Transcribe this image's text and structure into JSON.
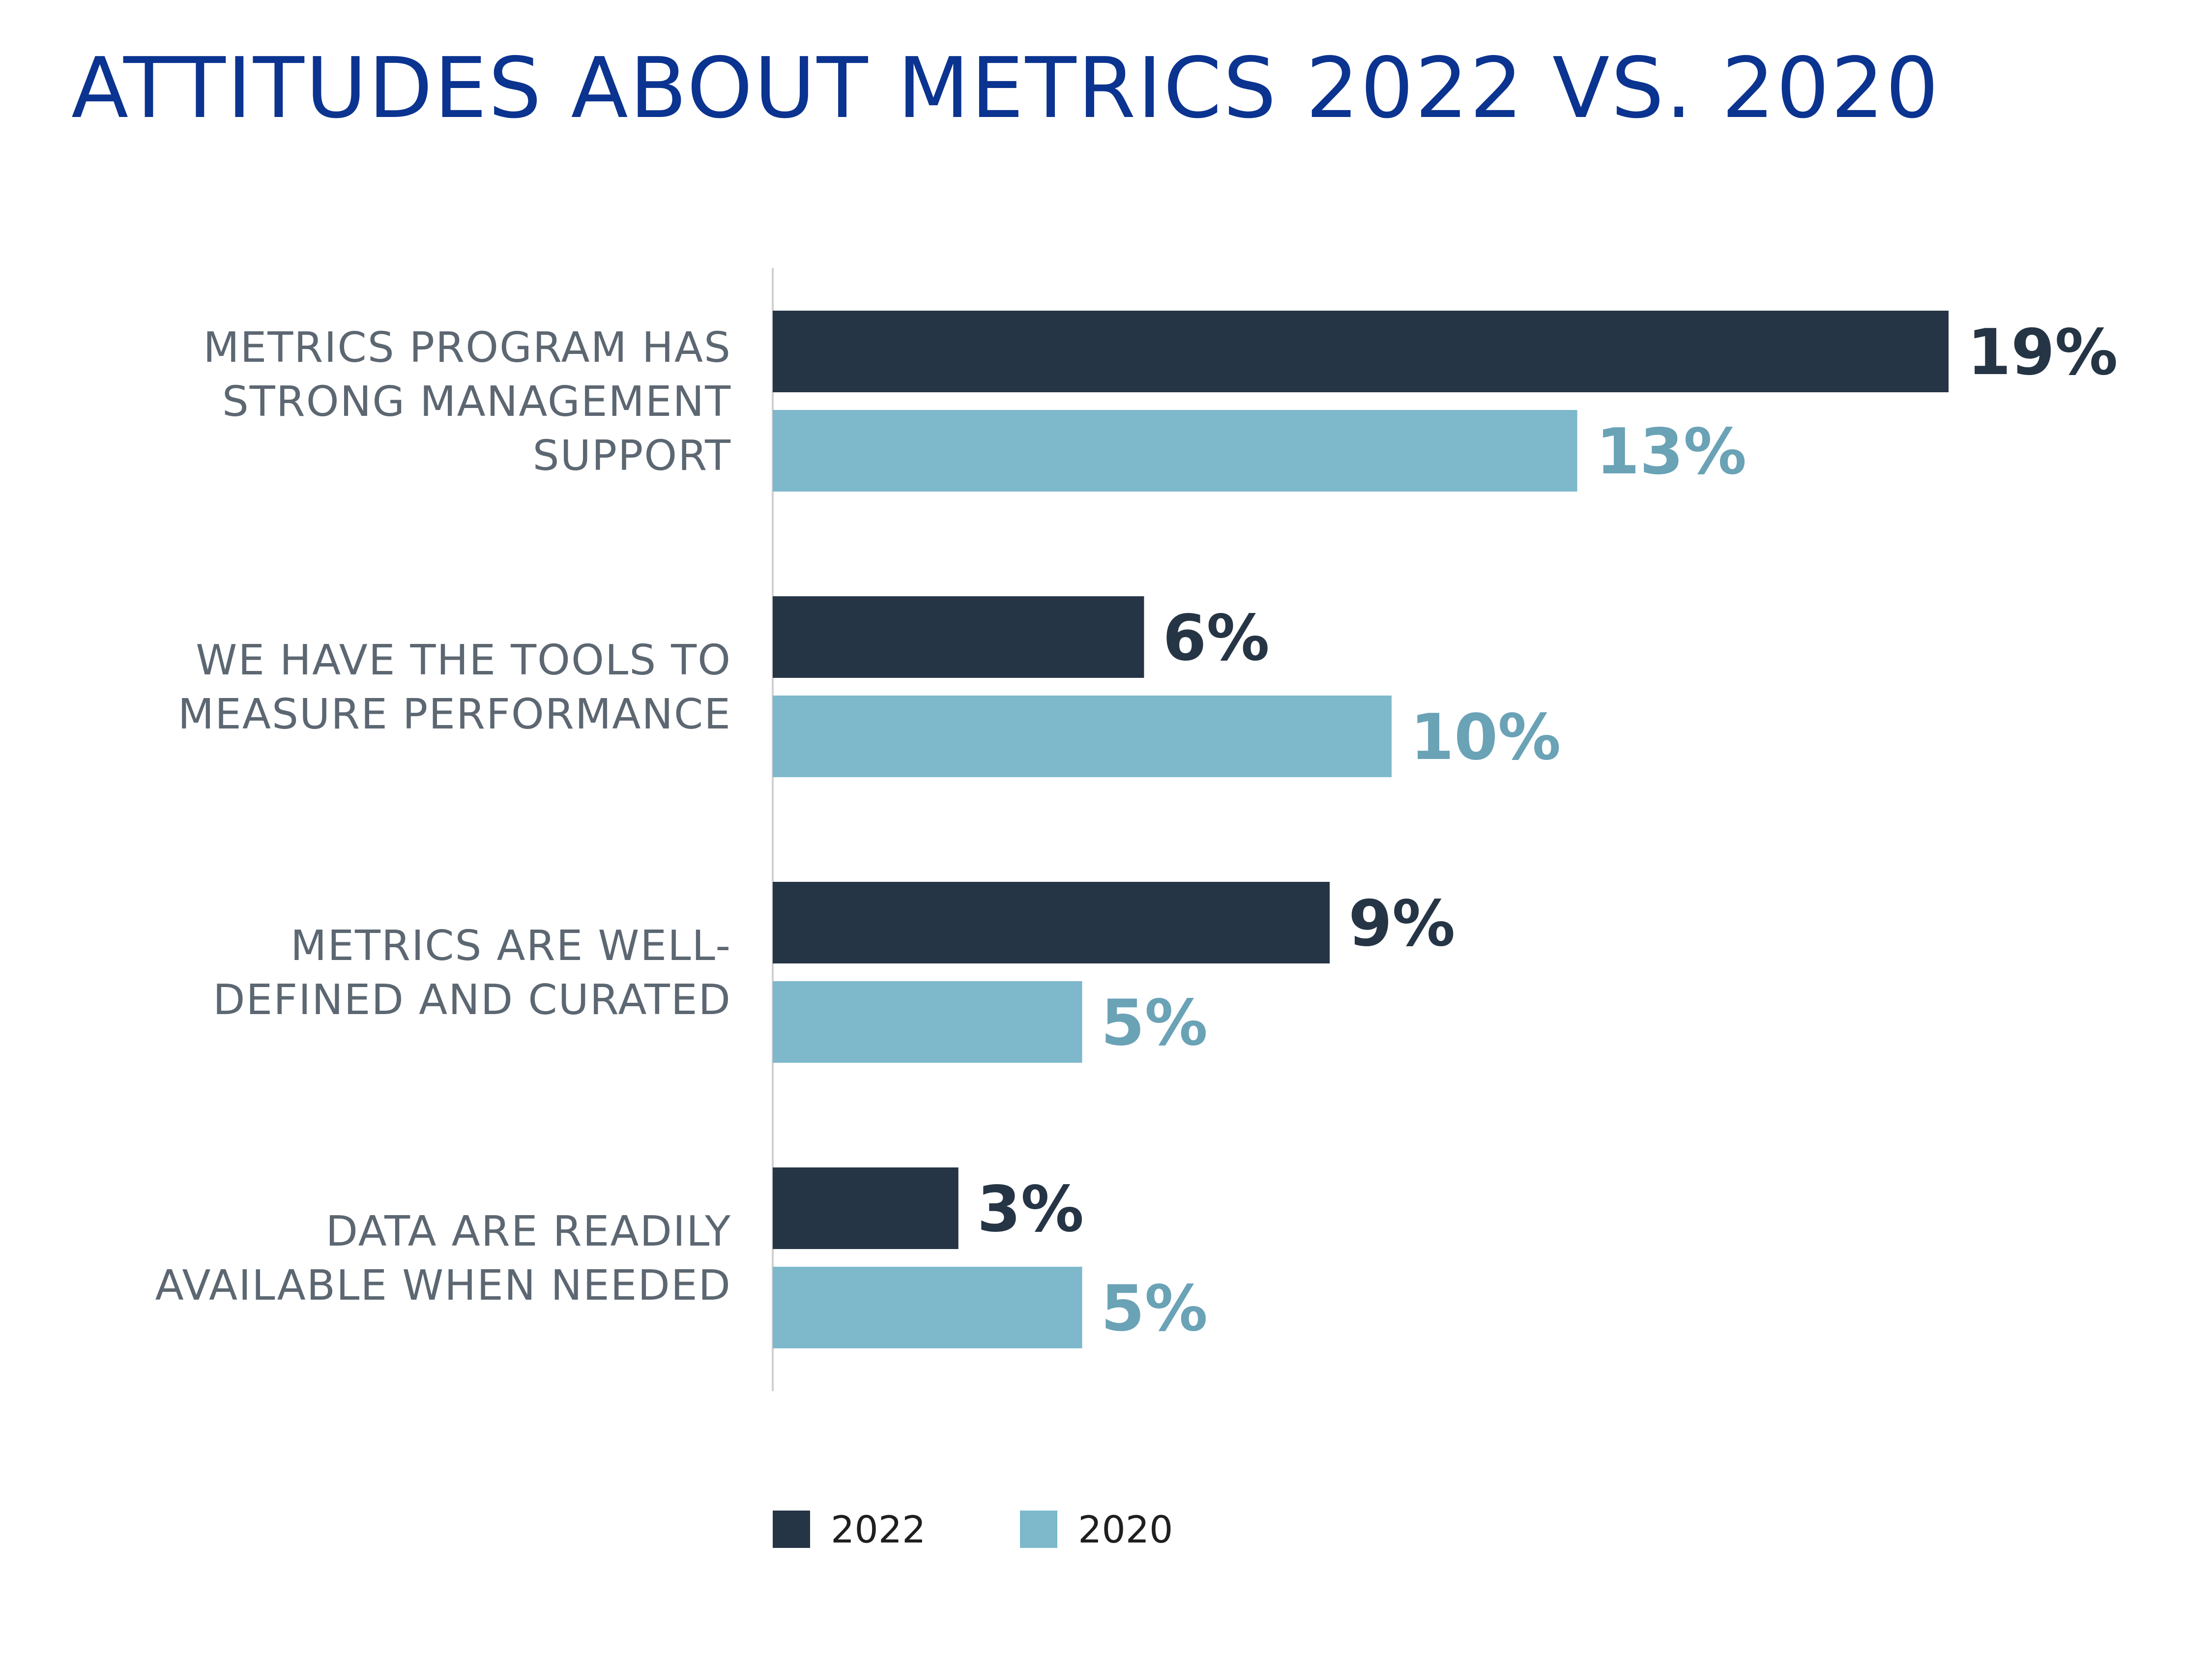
{
  "title": "ATTITUDES ABOUT METRICS 2022 VS. 2020",
  "colors": {
    "title": "#0b3390",
    "series_2022": "#253545",
    "series_2020": "#7db8cb",
    "label_2020": "#6aa2b6",
    "category_text": "#5c6772",
    "axis_line": "#d0d0d0"
  },
  "chart_data": {
    "type": "bar",
    "orientation": "horizontal",
    "title": "ATTITUDES ABOUT METRICS 2022 VS. 2020",
    "categories": [
      [
        "METRICS PROGRAM HAS",
        "STRONG MANAGEMENT",
        "SUPPORT"
      ],
      [
        "WE HAVE THE TOOLS TO",
        "MEASURE PERFORMANCE"
      ],
      [
        "METRICS ARE WELL-",
        "DEFINED AND CURATED"
      ],
      [
        "DATA ARE READILY",
        "AVAILABLE WHEN NEEDED"
      ]
    ],
    "series": [
      {
        "name": "2022",
        "values": [
          19,
          6,
          9,
          3
        ],
        "labels": [
          "19%",
          "6%",
          "9%",
          "3%"
        ]
      },
      {
        "name": "2020",
        "values": [
          13,
          10,
          5,
          5
        ],
        "labels": [
          "13%",
          "10%",
          "5%",
          "5%"
        ]
      }
    ],
    "unit": "%",
    "xlim": [
      0,
      20
    ],
    "grid": false,
    "legend_position": "bottom"
  },
  "legend": [
    {
      "label": "2022"
    },
    {
      "label": "2020"
    }
  ]
}
